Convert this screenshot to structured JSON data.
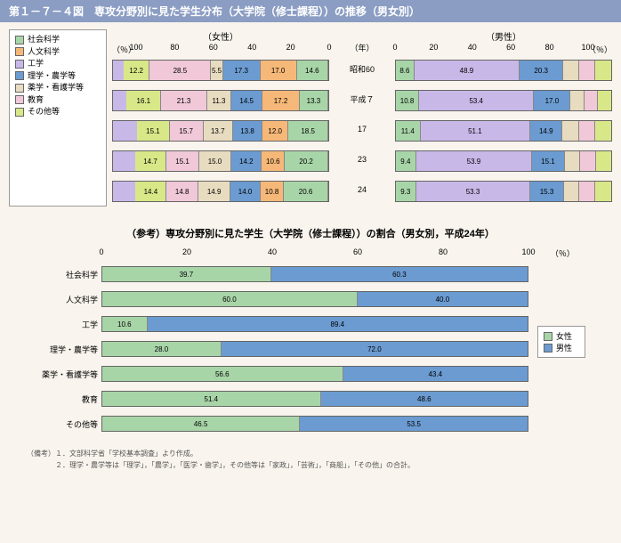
{
  "title": "第１－７－４図　専攻分野別に見た学生分布（大学院（修士課程））の推移（男女別）",
  "colors": {
    "social": "#a8d5a8",
    "humanities": "#f5b878",
    "engineering": "#c8b8e8",
    "science": "#6b9bd1",
    "pharm": "#e8dcc0",
    "education": "#f0c8d8",
    "other": "#d8e888",
    "female": "#a8d5a8",
    "male": "#6b9bd1",
    "bg": "#f9f4ed",
    "border": "#666666"
  },
  "fields": {
    "social": "社会科学",
    "humanities": "人文科学",
    "engineering": "工学",
    "science": "理学・農学等",
    "pharm": "薬学・看護学等",
    "education": "教育",
    "other": "その他等"
  },
  "top": {
    "female_label": "（女性）",
    "male_label": "（男性）",
    "year_unit": "（年）",
    "pct_unit": "（％）",
    "axis_max": 100,
    "ticks_female": [
      100,
      80,
      60,
      40,
      20,
      0
    ],
    "ticks_male": [
      0,
      20,
      40,
      60,
      80,
      100
    ],
    "years": [
      "昭和60",
      "平成７",
      "17",
      "23",
      "24"
    ],
    "female_data": [
      [
        14.6,
        17.0,
        0,
        17.3,
        5.5,
        28.5,
        12.2
      ],
      [
        13.3,
        17.2,
        0,
        14.5,
        11.3,
        21.3,
        16.1
      ],
      [
        18.5,
        12.0,
        0,
        13.8,
        13.7,
        15.7,
        15.1
      ],
      [
        20.2,
        10.6,
        0,
        14.2,
        15.0,
        15.1,
        14.7
      ],
      [
        20.6,
        10.8,
        0,
        14.0,
        14.9,
        14.8,
        14.4
      ]
    ],
    "female_hidden": [
      4.9,
      6.3,
      11.2,
      10.2,
      10.5
    ],
    "male_data": [
      [
        8.6,
        0,
        48.9,
        20.3,
        0,
        0,
        0
      ],
      [
        10.8,
        0,
        53.4,
        17.0,
        0,
        0,
        0
      ],
      [
        11.4,
        0,
        51.1,
        14.9,
        0,
        0,
        0
      ],
      [
        9.4,
        0,
        53.9,
        15.1,
        0,
        0,
        0
      ],
      [
        9.3,
        0,
        53.3,
        15.3,
        0,
        0,
        0
      ]
    ],
    "male_rest": [
      22.2,
      18.8,
      22.6,
      21.6,
      22.1
    ]
  },
  "ref": {
    "title": "（参考）専攻分野別に見た学生（大学院（修士課程））の割合（男女別，平成24年）",
    "axis_ticks": [
      0,
      20,
      40,
      60,
      80,
      100
    ],
    "pct_unit": "（％）",
    "female_label": "女性",
    "male_label": "男性",
    "rows": [
      {
        "label": "社会科学",
        "f": 39.7,
        "m": 60.3
      },
      {
        "label": "人文科学",
        "f": 60.0,
        "m": 40.0
      },
      {
        "label": "工学",
        "f": 10.6,
        "m": 89.4
      },
      {
        "label": "理学・農学等",
        "f": 28.0,
        "m": 72.0
      },
      {
        "label": "薬学・看護学等",
        "f": 56.6,
        "m": 43.4
      },
      {
        "label": "教育",
        "f": 51.4,
        "m": 48.6
      },
      {
        "label": "その他等",
        "f": 46.5,
        "m": 53.5
      }
    ]
  },
  "notes": {
    "n1": "（備考）１．文部科学省「学校基本調査」より作成。",
    "n2": "　　　　２．理学・農学等は「理学」，「農学」，「医学・歯学」，その他等は「家政」，「芸術」，「商船」，「その他」の合計。"
  }
}
